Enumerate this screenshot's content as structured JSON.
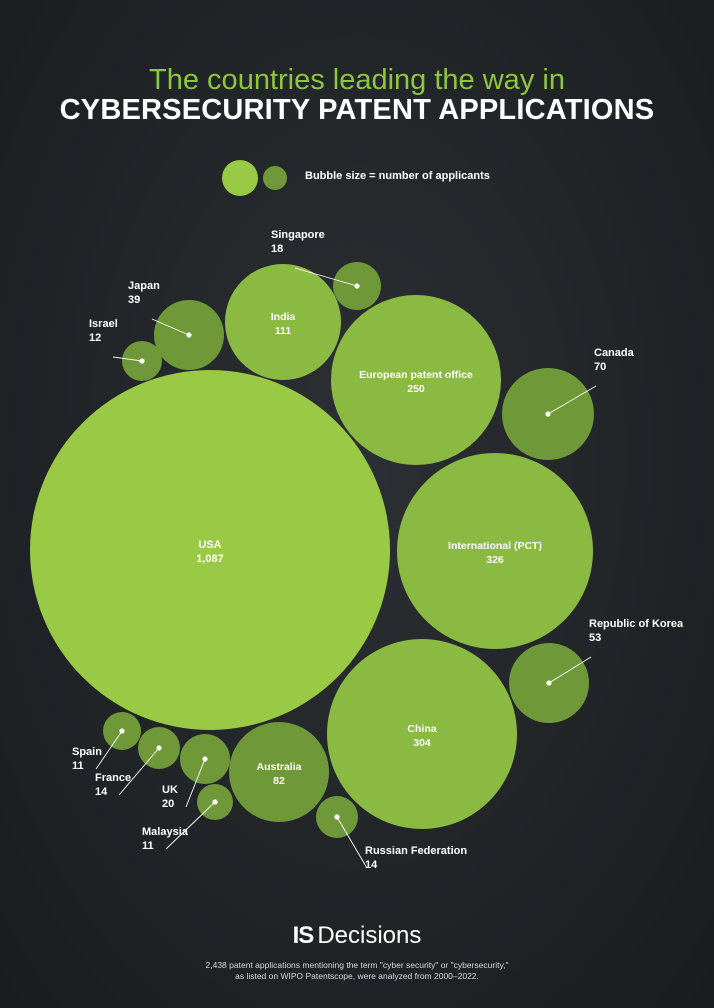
{
  "title": {
    "line1": "The countries leading the way in",
    "line2": "CYBERSECURITY PATENT APPLICATIONS"
  },
  "legend": {
    "text": "Bubble size =  number of applicants"
  },
  "colors": {
    "background": "#202326",
    "accent": "#8dc63f",
    "bubble_light": "#9aca45",
    "bubble_mid": "#8bba42",
    "bubble_dark": "#6f9939"
  },
  "chart_data": {
    "type": "bubble",
    "size_measure": "number of applicants",
    "points": [
      {
        "name": "USA",
        "value": "1,087",
        "numeric": 1087
      },
      {
        "name": "International (PCT)",
        "value": "326",
        "numeric": 326
      },
      {
        "name": "China",
        "value": "304",
        "numeric": 304
      },
      {
        "name": "European patent office",
        "value": "250",
        "numeric": 250
      },
      {
        "name": "India",
        "value": "111",
        "numeric": 111
      },
      {
        "name": "Australia",
        "value": "82",
        "numeric": 82
      },
      {
        "name": "Canada",
        "value": "70",
        "numeric": 70
      },
      {
        "name": "Republic of Korea",
        "value": "53",
        "numeric": 53
      },
      {
        "name": "Japan",
        "value": "39",
        "numeric": 39
      },
      {
        "name": "UK",
        "value": "20",
        "numeric": 20
      },
      {
        "name": "Singapore",
        "value": "18",
        "numeric": 18
      },
      {
        "name": "France",
        "value": "14",
        "numeric": 14
      },
      {
        "name": "Russian Federation",
        "value": "14",
        "numeric": 14
      },
      {
        "name": "Israel",
        "value": "12",
        "numeric": 12
      },
      {
        "name": "Spain",
        "value": "11",
        "numeric": 11
      },
      {
        "name": "Malaysia",
        "value": "11",
        "numeric": 11
      }
    ]
  },
  "logo": {
    "prefix": "IS",
    "name": "Decisions"
  },
  "footnote": {
    "line1": "2,438 patent applications mentioning the term \"cyber security\" or \"cybersecurity,\"",
    "line2": "as listed on WIPO Patentscope, were analyzed from 2000–2022."
  }
}
